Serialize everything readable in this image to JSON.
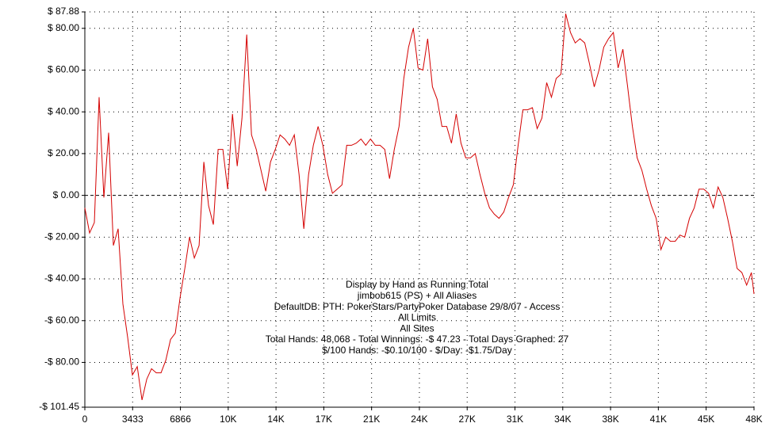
{
  "chart_data": {
    "type": "line",
    "annotations": [
      "Display by Hand as Running Total",
      "jimbob615 (PS) + All Aliases",
      "DefaultDB: PTH: PokerStars/PartyPoker Database 29/8/07 - Access",
      "All Limits",
      "All Sites",
      "Total Hands: 48,068 - Total Winnings: -$ 47.23 - Total Days Graphed: 27",
      "$/100 Hands: -$0.10/100 - $/Day: -$1.75/Day"
    ],
    "xlim": [
      0,
      48068
    ],
    "xticks": [
      0,
      3433,
      6866,
      {
        "value": 10299,
        "label": "10K"
      },
      {
        "value": 13732,
        "label": "14K"
      },
      {
        "value": 17165,
        "label": "17K"
      },
      {
        "value": 20598,
        "label": "21K"
      },
      {
        "value": 24031,
        "label": "24K"
      },
      {
        "value": 27464,
        "label": "27K"
      },
      {
        "value": 30897,
        "label": "31K"
      },
      {
        "value": 34330,
        "label": "34K"
      },
      {
        "value": 37763,
        "label": "38K"
      },
      {
        "value": 41196,
        "label": "41K"
      },
      {
        "value": 44629,
        "label": "45K"
      },
      {
        "value": 48068,
        "label": "48K"
      }
    ],
    "ylim": [
      -101.45,
      87.88
    ],
    "yticks": [
      {
        "value": 87.88,
        "label": "$ 87.88"
      },
      {
        "value": 80,
        "label": "$ 80.00"
      },
      {
        "value": 60,
        "label": "$ 60.00"
      },
      {
        "value": 40,
        "label": "$ 40.00"
      },
      {
        "value": 20,
        "label": "$ 20.00"
      },
      {
        "value": 0,
        "label": "$ 0.00"
      },
      {
        "value": -20,
        "label": "-$ 20.00"
      },
      {
        "value": -40,
        "label": "-$ 40.00"
      },
      {
        "value": -60,
        "label": "-$ 60.00"
      },
      {
        "value": -80,
        "label": "-$ 80.00"
      },
      {
        "value": -101.45,
        "label": "-$ 101.45"
      }
    ],
    "grid": true,
    "x": [
      0,
      342,
      684,
      1026,
      1368,
      1710,
      2052,
      2394,
      2736,
      3078,
      3420,
      3762,
      4104,
      4446,
      4788,
      5130,
      5472,
      5814,
      6156,
      6498,
      6840,
      7182,
      7524,
      7866,
      8208,
      8550,
      8892,
      9234,
      9576,
      9918,
      10260,
      10602,
      10944,
      11286,
      11628,
      11970,
      12312,
      12654,
      12996,
      13338,
      13680,
      14022,
      14364,
      14706,
      15048,
      15390,
      15732,
      16074,
      16416,
      16758,
      17100,
      17442,
      17784,
      18126,
      18468,
      18810,
      19152,
      19494,
      19836,
      20178,
      20520,
      20862,
      21204,
      21546,
      21888,
      22230,
      22572,
      22914,
      23256,
      23598,
      23940,
      24282,
      24624,
      24966,
      25308,
      25650,
      25992,
      26334,
      26676,
      27018,
      27360,
      27702,
      28044,
      28386,
      28728,
      29070,
      29412,
      29754,
      30096,
      30438,
      30780,
      31122,
      31464,
      31806,
      32148,
      32490,
      32832,
      33174,
      33516,
      33858,
      34200,
      34542,
      34884,
      35226,
      35568,
      35910,
      36252,
      36594,
      36936,
      37278,
      37620,
      37962,
      38304,
      38646,
      38988,
      39330,
      39672,
      40014,
      40356,
      40698,
      41040,
      41382,
      41724,
      42066,
      42408,
      42750,
      43092,
      43434,
      43776,
      44118,
      44460,
      44802,
      45144,
      45486,
      45828,
      46170,
      46512,
      46854,
      47196,
      47538,
      47880,
      48068
    ],
    "series": [
      {
        "color": "#d40000",
        "values": [
          -6,
          -18,
          -13,
          47,
          -1,
          30,
          -24,
          -16,
          -52,
          -68,
          -86,
          -82,
          -98,
          -88,
          -83,
          -85,
          -85,
          -79,
          -69,
          -66,
          -49,
          -35,
          -20,
          -30,
          -24,
          16,
          -5,
          -14,
          22,
          22,
          3,
          39,
          14,
          37,
          77,
          29,
          22,
          12,
          2,
          16,
          22,
          29,
          27,
          24,
          29,
          10,
          -16,
          10,
          24,
          33,
          24,
          10,
          1,
          3,
          5,
          24,
          24,
          25,
          27,
          24,
          27,
          24,
          24,
          22,
          8,
          22,
          33,
          56,
          71,
          80,
          61,
          60,
          75,
          52,
          46,
          33,
          33,
          25,
          39,
          25,
          18,
          18,
          20,
          10,
          1,
          -6,
          -9,
          -11,
          -8,
          -1,
          5,
          24,
          41,
          41,
          42,
          32,
          37,
          54,
          47,
          56,
          58,
          87,
          78,
          73,
          75,
          73,
          63,
          52,
          60,
          71,
          75,
          78,
          61,
          70,
          52,
          33,
          18,
          12,
          3,
          -5,
          -11,
          -26,
          -20,
          -22,
          -22,
          -19,
          -20,
          -11,
          -6,
          3,
          3,
          1,
          -6,
          4,
          -1,
          -11,
          -22,
          -35,
          -37,
          -43,
          -37,
          -47.23
        ]
      }
    ]
  }
}
